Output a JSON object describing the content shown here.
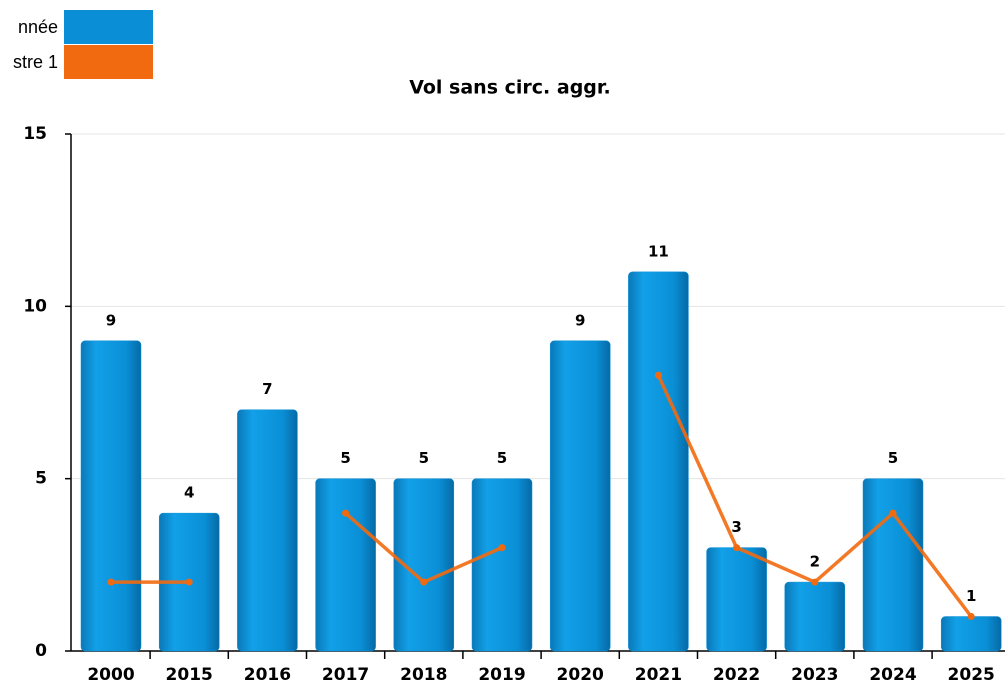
{
  "chart_data": {
    "type": "bar",
    "title": "Vol sans circ. aggr.",
    "categories": [
      "2000",
      "2015",
      "2016",
      "2017",
      "2018",
      "2019",
      "2020",
      "2021",
      "2022",
      "2023",
      "2024",
      "2025"
    ],
    "series": [
      {
        "name": "nnée",
        "color": "#0a8fd6",
        "type": "bar",
        "values": [
          9,
          4,
          7,
          5,
          5,
          5,
          9,
          11,
          3,
          2,
          5,
          1
        ]
      },
      {
        "name": "stre 1",
        "color": "#f26a10",
        "type": "line",
        "values": [
          2,
          2,
          null,
          4,
          2,
          3,
          null,
          8,
          3,
          2,
          4,
          1
        ]
      }
    ],
    "ylim": [
      0,
      15
    ],
    "yticks": [
      0,
      5,
      10,
      15
    ],
    "grid": true,
    "legend": "top-left"
  }
}
